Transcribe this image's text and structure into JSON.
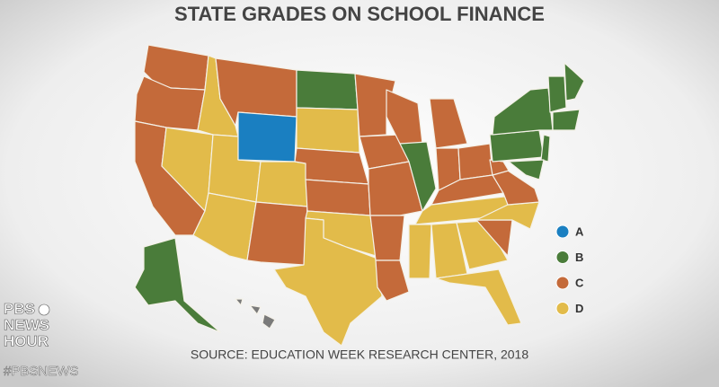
{
  "title": "STATE GRADES ON SCHOOL FINANCE",
  "legend": [
    {
      "label": "A",
      "color": "#1a7fc1"
    },
    {
      "label": "B",
      "color": "#4a7c3a"
    },
    {
      "label": "C",
      "color": "#c46a3a"
    },
    {
      "label": "D",
      "color": "#e2bb4a"
    }
  ],
  "source": "SOURCE: EDUCATION WEEK RESEARCH CENTER, 2018",
  "logo": {
    "lines": [
      "PBS",
      "NEWS",
      "HOUR"
    ],
    "handle": "#PBSNEWS"
  }
}
